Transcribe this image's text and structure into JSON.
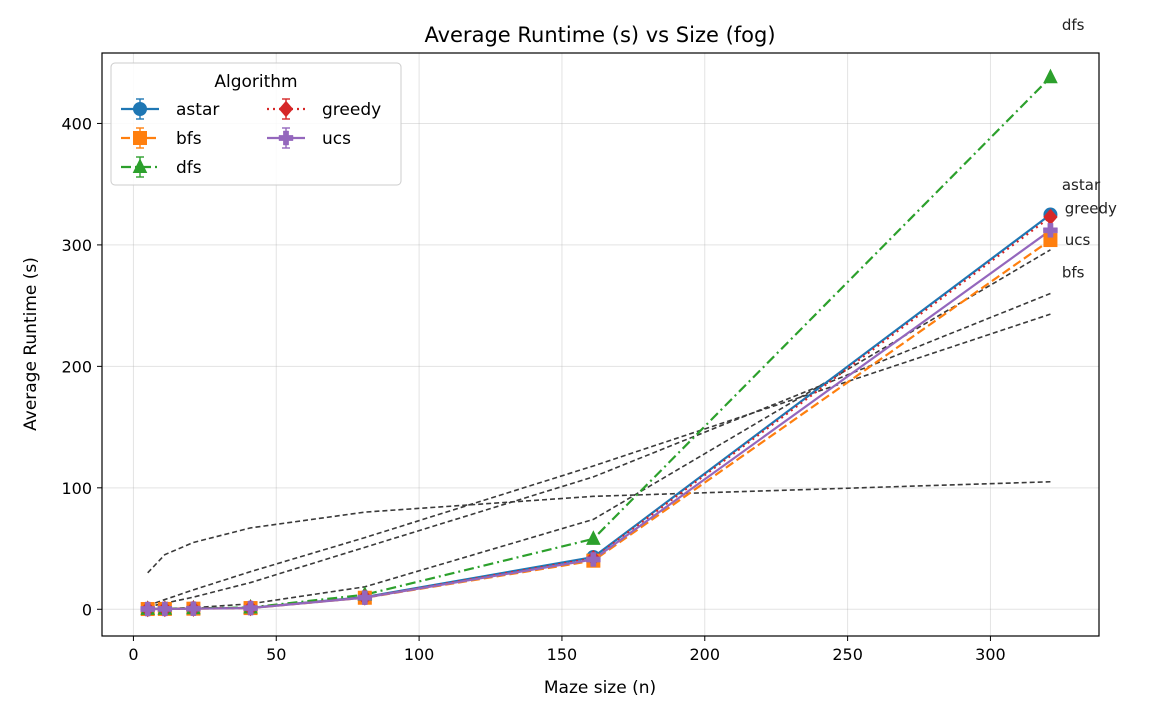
{
  "chart_data": {
    "type": "line",
    "title": "Average Runtime (s) vs Size (fog)",
    "xlabel": "Maze size (n)",
    "ylabel": "Average Runtime (s)",
    "xlim": [
      -11,
      338
    ],
    "ylim": [
      -22,
      458
    ],
    "xticks": [
      0,
      50,
      100,
      150,
      200,
      250,
      300
    ],
    "yticks": [
      0,
      100,
      200,
      300,
      400
    ],
    "grid": true,
    "legend": {
      "title": "Algorithm",
      "placement": "upper-left",
      "columns": 2
    },
    "x": [
      5,
      11,
      21,
      41,
      81,
      161,
      321
    ],
    "series": [
      {
        "name": "astar",
        "color": "#1f77b4",
        "dash": "solid",
        "marker": "circle",
        "values": [
          0.2,
          0.3,
          0.6,
          1.2,
          10.0,
          43.0,
          325.0
        ]
      },
      {
        "name": "bfs",
        "color": "#ff7f0e",
        "dash": "dashed",
        "marker": "square",
        "values": [
          0.2,
          0.3,
          0.5,
          1.0,
          9.5,
          40.0,
          304.0
        ]
      },
      {
        "name": "dfs",
        "color": "#2ca02c",
        "dash": "dashdot",
        "marker": "triangle",
        "values": [
          0.3,
          0.4,
          0.8,
          1.5,
          12.0,
          58.0,
          438.0
        ]
      },
      {
        "name": "greedy",
        "color": "#d62728",
        "dash": "dotted",
        "marker": "diamond",
        "values": [
          0.2,
          0.3,
          0.6,
          1.1,
          9.8,
          42.0,
          323.0
        ]
      },
      {
        "name": "ucs",
        "color": "#9467bd",
        "dash": "solid",
        "marker": "plus",
        "values": [
          0.2,
          0.3,
          0.5,
          1.0,
          9.6,
          41.0,
          312.0
        ]
      }
    ],
    "reference_curves": [
      {
        "x": [
          5,
          11,
          21,
          41,
          81,
          161,
          321
        ],
        "y": [
          30,
          45,
          55,
          67,
          80,
          93,
          105
        ]
      },
      {
        "x": [
          5,
          11,
          21,
          41,
          81,
          161,
          321
        ],
        "y": [
          3,
          8,
          16,
          31,
          59,
          118,
          243
        ]
      },
      {
        "x": [
          5,
          11,
          21,
          41,
          81,
          161,
          321
        ],
        "y": [
          2,
          5,
          10,
          22,
          51,
          109,
          260
        ]
      },
      {
        "x": [
          5,
          11,
          21,
          41,
          81,
          161,
          321
        ],
        "y": [
          0.3,
          0.6,
          1.3,
          4.5,
          18.5,
          74,
          296
        ]
      }
    ],
    "annotations": [
      {
        "text": "dfs",
        "x": 325,
        "y": 477
      },
      {
        "text": "astar",
        "x": 325,
        "y": 345
      },
      {
        "text": "greedy",
        "x": 326,
        "y": 326
      },
      {
        "text": "ucs",
        "x": 326,
        "y": 300
      },
      {
        "text": "bfs",
        "x": 325,
        "y": 273
      }
    ]
  }
}
